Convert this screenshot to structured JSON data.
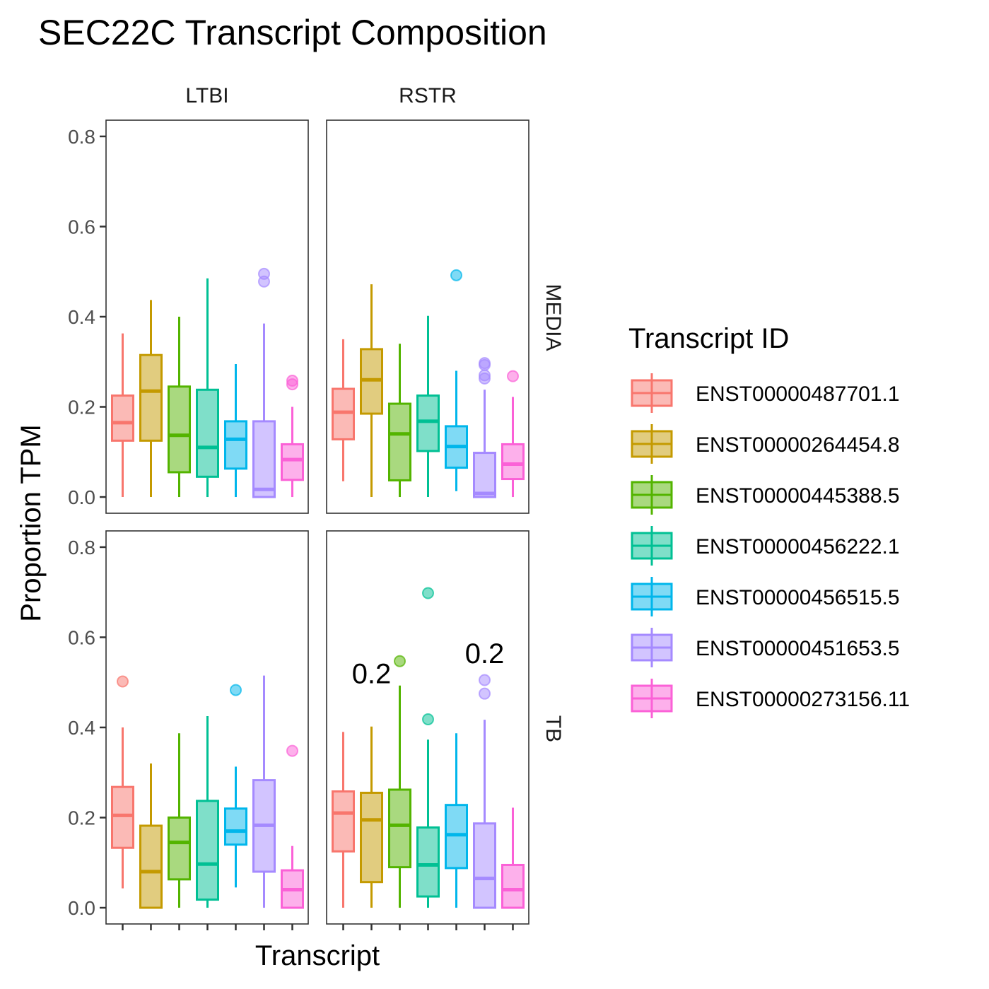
{
  "chart_data": {
    "type": "boxplot",
    "title": "SEC22C Transcript Composition",
    "xlabel": "Transcript",
    "ylabel": "Proportion TPM",
    "ylim": [
      0,
      0.8
    ],
    "yticks": [
      "0.0",
      "0.2",
      "0.4",
      "0.6",
      "0.8"
    ],
    "facet_cols": [
      "LTBI",
      "RSTR"
    ],
    "facet_rows": [
      "MEDIA",
      "TB"
    ],
    "grid": false,
    "legend": {
      "title": "Transcript ID",
      "position": "right",
      "entries": [
        {
          "name": "ENST00000487701.1",
          "color": "#F8766D"
        },
        {
          "name": "ENST00000264454.8",
          "color": "#C49A00"
        },
        {
          "name": "ENST00000445388.5",
          "color": "#53B400"
        },
        {
          "name": "ENST00000456222.1",
          "color": "#00C094"
        },
        {
          "name": "ENST00000456515.5",
          "color": "#00B6EB"
        },
        {
          "name": "ENST00000451653.5",
          "color": "#A58AFF"
        },
        {
          "name": "ENST00000273156.11",
          "color": "#FB61D7"
        }
      ]
    },
    "panels": [
      {
        "col": "LTBI",
        "row": "MEDIA",
        "boxes": [
          {
            "lower": 0.0,
            "q1": 0.125,
            "median": 0.165,
            "q3": 0.225,
            "upper": 0.363,
            "outliers": []
          },
          {
            "lower": 0.0,
            "q1": 0.125,
            "median": 0.235,
            "q3": 0.315,
            "upper": 0.437,
            "outliers": []
          },
          {
            "lower": 0.0,
            "q1": 0.055,
            "median": 0.137,
            "q3": 0.245,
            "upper": 0.4,
            "outliers": []
          },
          {
            "lower": 0.0,
            "q1": 0.045,
            "median": 0.11,
            "q3": 0.238,
            "upper": 0.485,
            "outliers": []
          },
          {
            "lower": 0.0,
            "q1": 0.063,
            "median": 0.128,
            "q3": 0.168,
            "upper": 0.295,
            "outliers": []
          },
          {
            "lower": 0.0,
            "q1": 0.0,
            "median": 0.017,
            "q3": 0.168,
            "upper": 0.385,
            "outliers": [
              0.495,
              0.478
            ]
          },
          {
            "lower": 0.0,
            "q1": 0.038,
            "median": 0.083,
            "q3": 0.117,
            "upper": 0.2,
            "outliers": [
              0.258,
              0.25
            ]
          }
        ]
      },
      {
        "col": "RSTR",
        "row": "MEDIA",
        "boxes": [
          {
            "lower": 0.035,
            "q1": 0.128,
            "median": 0.188,
            "q3": 0.24,
            "upper": 0.35,
            "outliers": []
          },
          {
            "lower": 0.0,
            "q1": 0.185,
            "median": 0.26,
            "q3": 0.328,
            "upper": 0.472,
            "outliers": []
          },
          {
            "lower": 0.0,
            "q1": 0.037,
            "median": 0.14,
            "q3": 0.207,
            "upper": 0.34,
            "outliers": []
          },
          {
            "lower": 0.0,
            "q1": 0.102,
            "median": 0.168,
            "q3": 0.225,
            "upper": 0.402,
            "outliers": []
          },
          {
            "lower": 0.013,
            "q1": 0.065,
            "median": 0.112,
            "q3": 0.157,
            "upper": 0.28,
            "outliers": [
              0.492
            ]
          },
          {
            "lower": 0.0,
            "q1": 0.0,
            "median": 0.008,
            "q3": 0.098,
            "upper": 0.238,
            "outliers": [
              0.297,
              0.293,
              0.27,
              0.263
            ]
          },
          {
            "lower": 0.0,
            "q1": 0.04,
            "median": 0.073,
            "q3": 0.117,
            "upper": 0.222,
            "outliers": [
              0.268
            ]
          }
        ]
      },
      {
        "col": "LTBI",
        "row": "TB",
        "boxes": [
          {
            "lower": 0.043,
            "q1": 0.133,
            "median": 0.205,
            "q3": 0.268,
            "upper": 0.4,
            "outliers": [
              0.502
            ]
          },
          {
            "lower": 0.0,
            "q1": 0.0,
            "median": 0.08,
            "q3": 0.182,
            "upper": 0.32,
            "outliers": []
          },
          {
            "lower": 0.0,
            "q1": 0.063,
            "median": 0.145,
            "q3": 0.2,
            "upper": 0.387,
            "outliers": []
          },
          {
            "lower": 0.0,
            "q1": 0.018,
            "median": 0.097,
            "q3": 0.237,
            "upper": 0.425,
            "outliers": []
          },
          {
            "lower": 0.045,
            "q1": 0.14,
            "median": 0.17,
            "q3": 0.22,
            "upper": 0.313,
            "outliers": [
              0.483
            ]
          },
          {
            "lower": 0.0,
            "q1": 0.08,
            "median": 0.183,
            "q3": 0.283,
            "upper": 0.515,
            "outliers": []
          },
          {
            "lower": 0.0,
            "q1": 0.0,
            "median": 0.04,
            "q3": 0.083,
            "upper": 0.137,
            "outliers": [
              0.348
            ]
          }
        ]
      },
      {
        "col": "RSTR",
        "row": "TB",
        "annotations": [
          {
            "text": "0.2",
            "x_index": 1,
            "y": 0.52
          },
          {
            "text": "0.2",
            "x_index": 5,
            "y": 0.565
          }
        ],
        "boxes": [
          {
            "lower": 0.0,
            "q1": 0.125,
            "median": 0.21,
            "q3": 0.258,
            "upper": 0.39,
            "outliers": []
          },
          {
            "lower": 0.0,
            "q1": 0.057,
            "median": 0.195,
            "q3": 0.255,
            "upper": 0.402,
            "outliers": []
          },
          {
            "lower": 0.0,
            "q1": 0.09,
            "median": 0.183,
            "q3": 0.262,
            "upper": 0.493,
            "outliers": [
              0.547
            ]
          },
          {
            "lower": 0.0,
            "q1": 0.025,
            "median": 0.095,
            "q3": 0.178,
            "upper": 0.373,
            "outliers": [
              0.698,
              0.418
            ]
          },
          {
            "lower": 0.0,
            "q1": 0.088,
            "median": 0.162,
            "q3": 0.228,
            "upper": 0.387,
            "outliers": []
          },
          {
            "lower": 0.0,
            "q1": 0.0,
            "median": 0.065,
            "q3": 0.187,
            "upper": 0.417,
            "outliers": [
              0.505,
              0.475
            ]
          },
          {
            "lower": 0.0,
            "q1": 0.0,
            "median": 0.04,
            "q3": 0.095,
            "upper": 0.222,
            "outliers": []
          }
        ]
      }
    ]
  }
}
